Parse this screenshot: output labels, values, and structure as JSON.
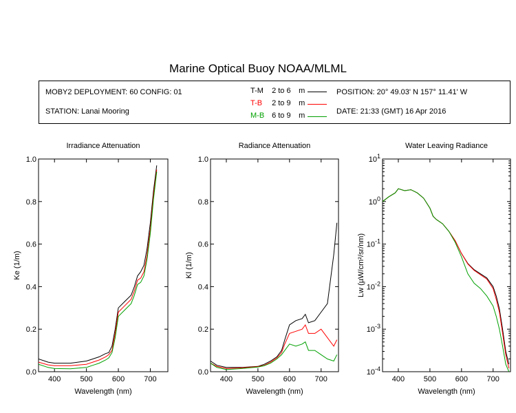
{
  "title": "Marine Optical Buoy NOAA/MLML",
  "info": {
    "deployment": "MOBY2 DEPLOYMENT: 60 CONFIG: 01",
    "station": "STATION: Lanai Mooring",
    "position": "POSITION: 20° 49.03' N   157° 11.41' W",
    "date": "DATE: 21:33 (GMT) 16 Apr 2016"
  },
  "legend": [
    {
      "code": "T-M",
      "range": "2 to 6",
      "unit": "m",
      "color": "#000000"
    },
    {
      "code": "T-B",
      "range": "2 to 9",
      "unit": "m",
      "color": "#ff0000"
    },
    {
      "code": "M-B",
      "range": "6 to 9",
      "unit": "m",
      "color": "#00a000"
    }
  ],
  "chart_data": [
    {
      "type": "line",
      "title": "Irradiance Attenuation",
      "xlabel": "Wavelength (nm)",
      "ylabel": "Ke  (1/m)",
      "xlim": [
        350,
        755
      ],
      "ylim": [
        0,
        1.0
      ],
      "xticks": [
        400,
        500,
        600,
        700
      ],
      "yticks": [
        0.0,
        0.2,
        0.4,
        0.6,
        0.8,
        1.0
      ],
      "ytick_labels": [
        "0.0",
        "0.2",
        "0.4",
        "0.6",
        "0.8",
        "1.0"
      ],
      "x": [
        350,
        380,
        400,
        450,
        500,
        520,
        540,
        560,
        570,
        580,
        590,
        600,
        620,
        640,
        650,
        660,
        670,
        680,
        690,
        700,
        710,
        720
      ],
      "series": [
        {
          "name": "T-M",
          "color": "#000000",
          "values": [
            0.06,
            0.045,
            0.04,
            0.04,
            0.05,
            0.06,
            0.07,
            0.085,
            0.09,
            0.12,
            0.2,
            0.3,
            0.33,
            0.36,
            0.4,
            0.45,
            0.47,
            0.5,
            0.58,
            0.7,
            0.85,
            0.97
          ]
        },
        {
          "name": "T-B",
          "color": "#ff0000",
          "values": [
            0.045,
            0.032,
            0.028,
            0.028,
            0.035,
            0.045,
            0.055,
            0.07,
            0.08,
            0.1,
            0.18,
            0.28,
            0.31,
            0.34,
            0.38,
            0.43,
            0.44,
            0.47,
            0.55,
            0.67,
            0.83,
            0.95
          ]
        },
        {
          "name": "M-B",
          "color": "#00a000",
          "values": [
            0.035,
            0.02,
            0.015,
            0.014,
            0.02,
            0.03,
            0.04,
            0.055,
            0.065,
            0.09,
            0.16,
            0.26,
            0.29,
            0.32,
            0.36,
            0.41,
            0.42,
            0.45,
            0.53,
            0.65,
            0.81,
            0.94
          ]
        }
      ]
    },
    {
      "type": "line",
      "title": "Radiance Attenuation",
      "xlabel": "Wavelength (nm)",
      "ylabel": "Kl  (1/m)",
      "xlim": [
        350,
        755
      ],
      "ylim": [
        0,
        1.0
      ],
      "xticks": [
        400,
        500,
        600,
        700
      ],
      "yticks": [
        0.0,
        0.2,
        0.4,
        0.6,
        0.8,
        1.0
      ],
      "ytick_labels": [
        "0.0",
        "0.2",
        "0.4",
        "0.6",
        "0.8",
        "1.0"
      ],
      "x": [
        350,
        370,
        400,
        450,
        500,
        520,
        540,
        560,
        575,
        585,
        600,
        620,
        640,
        650,
        660,
        680,
        700,
        720,
        740,
        750
      ],
      "series": [
        {
          "name": "T-M",
          "color": "#000000",
          "values": [
            0.05,
            0.03,
            0.02,
            0.02,
            0.025,
            0.035,
            0.05,
            0.07,
            0.1,
            0.15,
            0.22,
            0.24,
            0.25,
            0.27,
            0.23,
            0.24,
            0.28,
            0.32,
            0.55,
            0.7
          ]
        },
        {
          "name": "T-B",
          "color": "#ff0000",
          "values": [
            0.04,
            0.025,
            0.015,
            0.018,
            0.024,
            0.03,
            0.045,
            0.065,
            0.09,
            0.13,
            0.18,
            0.19,
            0.2,
            0.22,
            0.18,
            0.18,
            0.2,
            0.16,
            0.12,
            0.15
          ]
        },
        {
          "name": "M-B",
          "color": "#00a000",
          "values": [
            0.04,
            0.02,
            0.01,
            0.015,
            0.022,
            0.028,
            0.04,
            0.06,
            0.08,
            0.1,
            0.13,
            0.12,
            0.13,
            0.14,
            0.1,
            0.1,
            0.08,
            0.06,
            0.05,
            0.08
          ]
        }
      ]
    },
    {
      "type": "line",
      "title": "Water Leaving Radiance",
      "xlabel": "Wavelength (nm)",
      "ylabel": "Lw  (µW/cm²/sr/nm)",
      "xlim": [
        350,
        755
      ],
      "ylim": [
        0.0001,
        10
      ],
      "yscale": "log",
      "xticks": [
        400,
        500,
        600,
        700
      ],
      "yticks": [
        0.0001,
        0.001,
        0.01,
        0.1,
        1,
        10
      ],
      "ytick_labels": [
        {
          "base": "10",
          "exp": "-4"
        },
        {
          "base": "10",
          "exp": "-3"
        },
        {
          "base": "10",
          "exp": "-2"
        },
        {
          "base": "10",
          "exp": "-1"
        },
        {
          "base": "10",
          "exp": "0"
        },
        {
          "base": "10",
          "exp": "1"
        }
      ],
      "x": [
        350,
        370,
        390,
        400,
        420,
        440,
        460,
        480,
        500,
        510,
        520,
        540,
        560,
        580,
        600,
        620,
        640,
        660,
        680,
        700,
        710,
        720,
        730,
        740,
        750
      ],
      "series": [
        {
          "name": "T-M",
          "color": "#000000",
          "values": [
            1.0,
            1.3,
            1.6,
            2.0,
            1.8,
            1.9,
            1.6,
            1.2,
            0.7,
            0.45,
            0.38,
            0.3,
            0.2,
            0.12,
            0.06,
            0.035,
            0.025,
            0.02,
            0.016,
            0.01,
            0.006,
            0.003,
            0.001,
            0.0003,
            0.00015
          ]
        },
        {
          "name": "T-B",
          "color": "#ff0000",
          "values": [
            1.0,
            1.3,
            1.6,
            2.0,
            1.8,
            1.9,
            1.6,
            1.2,
            0.7,
            0.45,
            0.38,
            0.3,
            0.2,
            0.12,
            0.06,
            0.034,
            0.024,
            0.019,
            0.015,
            0.009,
            0.005,
            0.0025,
            0.0008,
            0.00025,
            0.00012
          ]
        },
        {
          "name": "M-B",
          "color": "#00a000",
          "values": [
            1.0,
            1.3,
            1.6,
            2.0,
            1.8,
            1.9,
            1.6,
            1.2,
            0.7,
            0.45,
            0.38,
            0.3,
            0.2,
            0.11,
            0.05,
            0.02,
            0.012,
            0.009,
            0.006,
            0.0035,
            0.002,
            0.001,
            0.0004,
            0.00015,
            0.0001
          ]
        }
      ]
    }
  ]
}
